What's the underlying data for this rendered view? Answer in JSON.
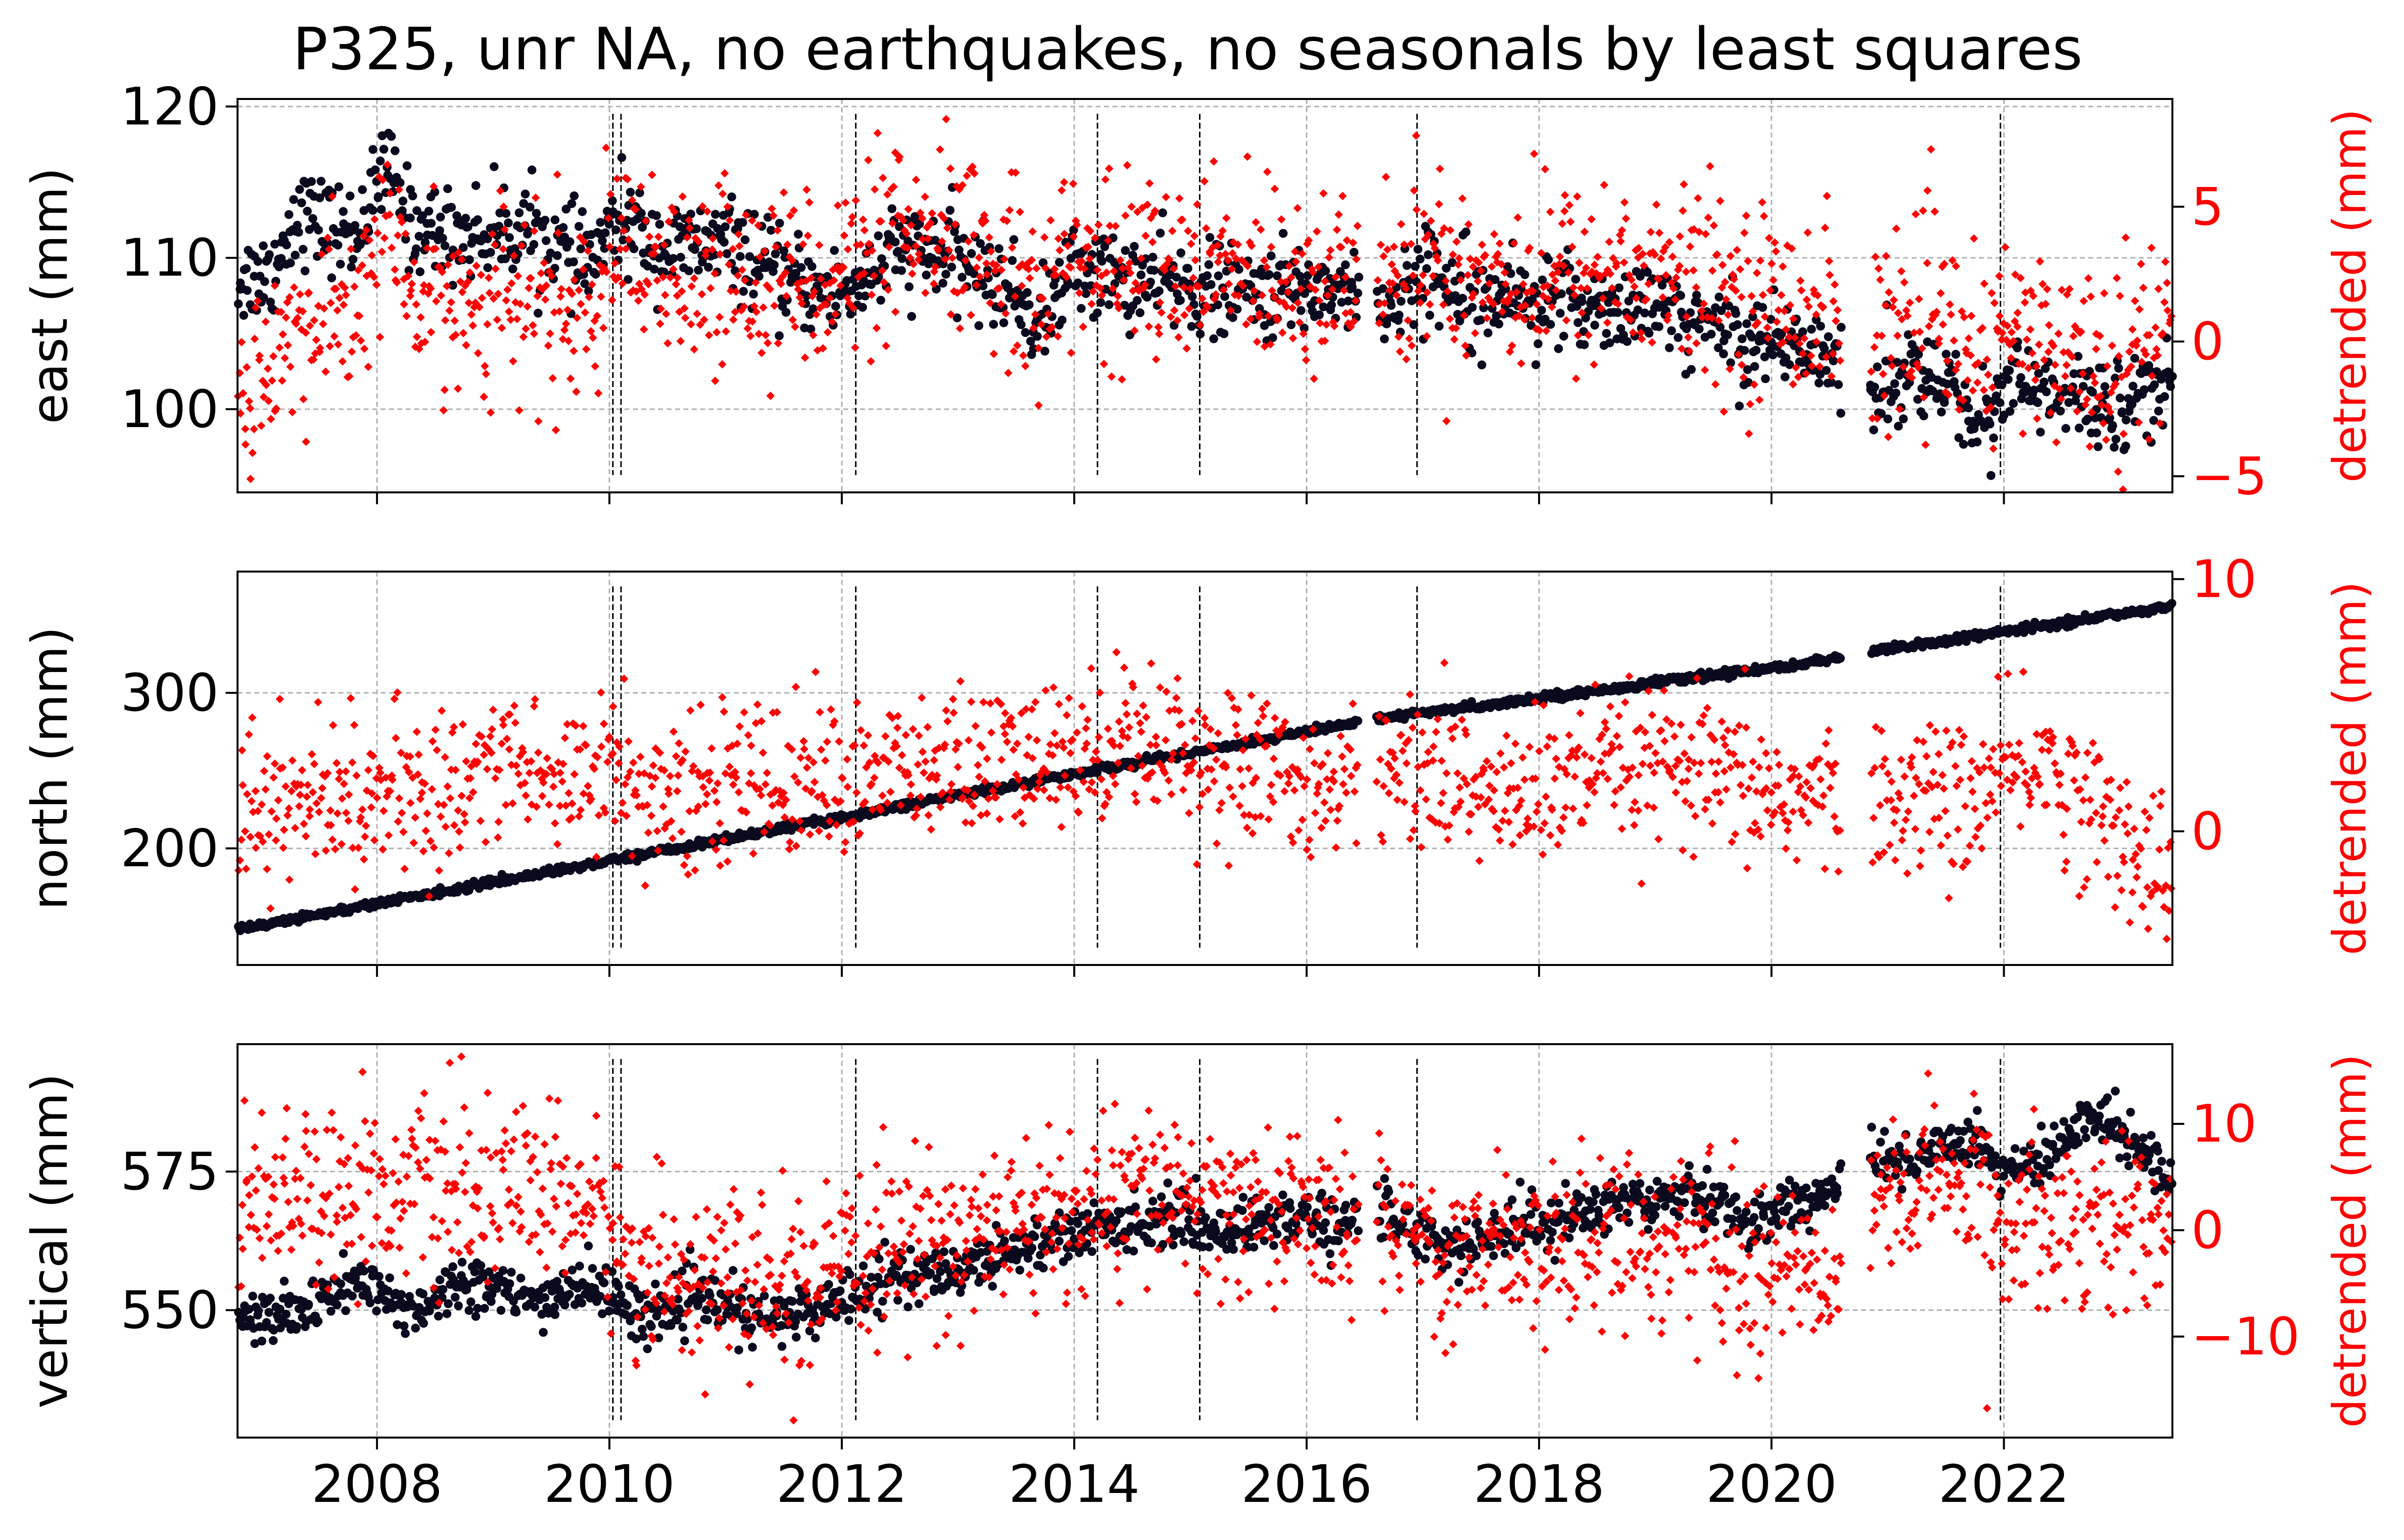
{
  "chart_data": {
    "type": "scatter",
    "title": "P325, unr NA, no earthquakes, no seasonals by least squares",
    "x_axis": {
      "range": [
        2006.8,
        2023.45
      ],
      "ticks": [
        2008,
        2010,
        2012,
        2014,
        2016,
        2018,
        2020,
        2022
      ],
      "tick_labels": [
        "2008",
        "2010",
        "2012",
        "2014",
        "2016",
        "2018",
        "2020",
        "2022"
      ]
    },
    "grid": true,
    "data_gaps": [
      [
        2016.45,
        2016.6
      ],
      [
        2020.6,
        2020.85
      ]
    ],
    "event_lines": [
      2010.03,
      2010.1,
      2012.12,
      2014.2,
      2015.08,
      2016.95,
      2021.97
    ],
    "series_colors": {
      "position": "#0a0a1e",
      "detrended": "#ff0000"
    },
    "panels": [
      {
        "ylabel": "east (mm)",
        "ylabel_right": "detrended (mm)",
        "ylim": [
          94.5,
          120.5
        ],
        "yticks": [
          100,
          110,
          120
        ],
        "ytick_labels": [
          "100",
          "110",
          "120"
        ],
        "ylim_right": [
          -5.6,
          9.0
        ],
        "yticks_right": [
          -5,
          0,
          5
        ],
        "ytick_labels_right": [
          "−5",
          "0",
          "5"
        ],
        "position_trend": {
          "x": [
            2006.8,
            2007.1,
            2007.3,
            2007.8,
            2008.1,
            2008.3,
            2008.8,
            2009.3,
            2009.8,
            2010.1,
            2010.5,
            2011.0,
            2011.5,
            2012.0,
            2012.5,
            2013.0,
            2013.5,
            2013.7,
            2014.0,
            2014.5,
            2015.0,
            2015.5,
            2016.0,
            2016.45,
            2016.6,
            2017.0,
            2017.5,
            2018.0,
            2018.5,
            2019.0,
            2019.5,
            2020.0,
            2020.6,
            2020.85,
            2021.2,
            2021.5,
            2021.8,
            2022.0,
            2022.5,
            2023.0,
            2023.45
          ],
          "y": [
            108.5,
            109,
            113,
            111.5,
            116,
            112,
            111.5,
            112,
            109.5,
            112.5,
            110.5,
            111,
            108.5,
            107.5,
            110.5,
            110,
            107.5,
            105.5,
            109.5,
            108.5,
            108,
            107.5,
            108,
            108,
            106,
            109,
            108,
            107,
            107,
            106.5,
            105.5,
            104.5,
            103.5,
            101,
            102.5,
            101.5,
            99,
            102,
            100.5,
            100.5,
            101.5
          ],
          "spread": 1.5
        },
        "detrended_trend": {
          "x": [
            2006.8,
            2007.1,
            2007.3,
            2007.8,
            2008.1,
            2008.3,
            2008.8,
            2009.3,
            2009.8,
            2010.1,
            2010.5,
            2011.0,
            2011.5,
            2012.0,
            2012.5,
            2013.0,
            2013.5,
            2013.7,
            2014.0,
            2014.5,
            2015.0,
            2015.5,
            2016.0,
            2016.45,
            2016.6,
            2017.0,
            2017.5,
            2018.0,
            2018.5,
            2019.0,
            2019.5,
            2020.0,
            2020.6,
            2020.85,
            2021.2,
            2021.5,
            2021.8,
            2022.0,
            2022.5,
            2023.0,
            2023.45
          ],
          "y": [
            -2,
            -0.5,
            0.2,
            1,
            4.5,
            1.5,
            1.5,
            1.5,
            1,
            3,
            2,
            2.5,
            2.5,
            2.5,
            3.5,
            3.5,
            2.8,
            2.0,
            3,
            2.7,
            2.6,
            2.6,
            2.6,
            2.6,
            1.8,
            3.0,
            2.5,
            2.3,
            2.7,
            2.5,
            2.0,
            1.5,
            1.2,
            0.5,
            0.8,
            0.5,
            -1.5,
            0.5,
            -0.5,
            -0.5,
            0.5
          ],
          "spread": 1.7
        }
      },
      {
        "ylabel": "north (mm)",
        "ylabel_right": "detrended (mm)",
        "ylim": [
          125,
          378
        ],
        "yticks": [
          200,
          300
        ],
        "ytick_labels": [
          "200",
          "300"
        ],
        "ylim_right": [
          -5.3,
          10.3
        ],
        "yticks_right": [
          0,
          10
        ],
        "ytick_labels_right": [
          "0",
          "10"
        ],
        "position_trend": {
          "x": [
            2006.8,
            2010.0,
            2014.0,
            2016.45,
            2016.6,
            2020.6,
            2020.85,
            2023.45
          ],
          "y": [
            148,
            192,
            248,
            281,
            283,
            322,
            326,
            356
          ],
          "spread": 1.2
        },
        "detrended_trend": {
          "x": [
            2006.8,
            2007.5,
            2008.0,
            2008.5,
            2009.0,
            2009.5,
            2010.0,
            2010.5,
            2011.0,
            2011.5,
            2012.0,
            2012.5,
            2013.0,
            2013.5,
            2014.0,
            2014.5,
            2015.0,
            2015.5,
            2016.0,
            2016.45,
            2016.6,
            2017.0,
            2017.5,
            2018.0,
            2018.5,
            2019.0,
            2019.5,
            2020.0,
            2020.6,
            2020.85,
            2021.3,
            2021.7,
            2022.0,
            2022.3,
            2022.7,
            2023.0,
            2023.45
          ],
          "y": [
            1.0,
            1.2,
            1.5,
            1.2,
            3.0,
            2.0,
            2.8,
            1.0,
            2.2,
            2.0,
            2.2,
            2.3,
            2.6,
            2.6,
            3.0,
            4.0,
            3.2,
            2.3,
            2.0,
            2.0,
            2.2,
            2.5,
            1.5,
            1.5,
            2.2,
            2.5,
            2.0,
            1.5,
            1.2,
            1.0,
            1.5,
            1.2,
            2.0,
            3.0,
            1.0,
            0.0,
            -2.0
          ],
          "spread": 1.5
        }
      },
      {
        "ylabel": "vertical (mm)",
        "ylabel_right": "detrended (mm)",
        "ylim": [
          527,
          598
        ],
        "yticks": [
          550,
          575
        ],
        "ytick_labels": [
          "550",
          "575"
        ],
        "ylim_right": [
          -19.5,
          17.5
        ],
        "yticks_right": [
          -10,
          0,
          10
        ],
        "ytick_labels_right": [
          "−10",
          "0",
          "10"
        ],
        "position_trend": {
          "x": [
            2006.8,
            2007.3,
            2007.8,
            2008.3,
            2008.8,
            2009.3,
            2009.8,
            2010.3,
            2010.8,
            2011.3,
            2011.8,
            2012.3,
            2012.8,
            2013.3,
            2013.8,
            2014.3,
            2014.8,
            2015.3,
            2015.8,
            2016.45,
            2016.6,
            2017.3,
            2017.8,
            2018.3,
            2018.8,
            2019.3,
            2019.8,
            2020.6,
            2020.85,
            2021.3,
            2021.7,
            2022.0,
            2022.3,
            2022.8,
            2023.45
          ],
          "y": [
            548,
            549,
            555,
            550,
            556,
            551,
            555,
            549,
            552,
            548,
            550,
            556,
            556,
            560,
            563,
            565,
            567,
            564,
            567,
            565,
            568,
            561,
            565,
            567,
            570,
            572,
            566,
            572,
            576,
            578,
            582,
            575,
            576,
            586,
            574
          ],
          "spread": 2.5
        },
        "detrended_trend": {
          "x": [
            2006.8,
            2007.3,
            2007.8,
            2008.3,
            2008.8,
            2009.3,
            2009.8,
            2010.3,
            2010.8,
            2011.3,
            2011.8,
            2012.3,
            2012.8,
            2013.3,
            2013.8,
            2014.3,
            2014.8,
            2015.3,
            2015.8,
            2016.45,
            2016.6,
            2017.3,
            2017.8,
            2018.3,
            2018.8,
            2019.3,
            2019.8,
            2020.6,
            2020.85,
            2021.3,
            2021.7,
            2022.0,
            2022.3,
            2022.8,
            2023.45
          ],
          "y": [
            3,
            4,
            4,
            4,
            3.5,
            3.5,
            3,
            -4,
            -4,
            -5.5,
            -6,
            -1.5,
            -1,
            0,
            1,
            2.5,
            4,
            1,
            2.5,
            0,
            0.5,
            -2,
            -1,
            -1,
            -0.5,
            -1,
            -4,
            -3,
            2,
            4,
            4,
            1,
            2,
            1,
            0
          ],
          "spread": 4.0
        }
      }
    ]
  }
}
